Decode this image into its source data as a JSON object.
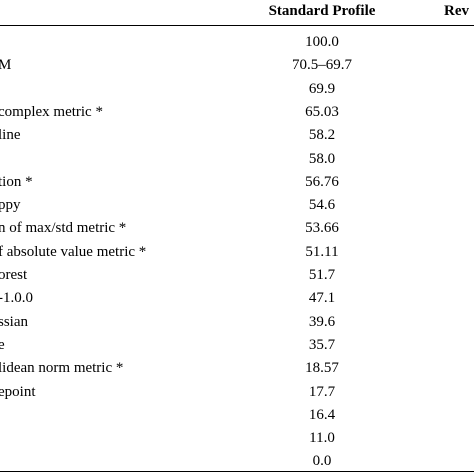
{
  "table": {
    "columns": [
      "Standard Profile",
      "Rev"
    ],
    "rows": [
      {
        "standard": "100.0"
      },
      {
        "label": "M",
        "standard": "70.5–69.7"
      },
      {
        "standard": "69.9"
      },
      {
        "label": "complex metric *",
        "standard": "65.03"
      },
      {
        "label": "line",
        "standard": "58.2"
      },
      {
        "standard": "58.0"
      },
      {
        "label": "tion *",
        "standard": "56.76"
      },
      {
        "label": "ppy",
        "standard": "54.6"
      },
      {
        "label": "n of max/std metric *",
        "standard": "53.66"
      },
      {
        "label": "f absolute value metric *",
        "standard": "51.11"
      },
      {
        "label": "orest",
        "standard": "51.7"
      },
      {
        "label": "-1.0.0",
        "standard": "47.1"
      },
      {
        "label": "ssian",
        "standard": "39.6"
      },
      {
        "label": "e",
        "standard": "35.7"
      },
      {
        "label": "lidean norm metric *",
        "standard": "18.57"
      },
      {
        "label": "epoint",
        "standard": "17.7"
      },
      {
        "standard": "16.4"
      },
      {
        "standard": "11.0"
      },
      {
        "standard": "0.0"
      }
    ]
  }
}
